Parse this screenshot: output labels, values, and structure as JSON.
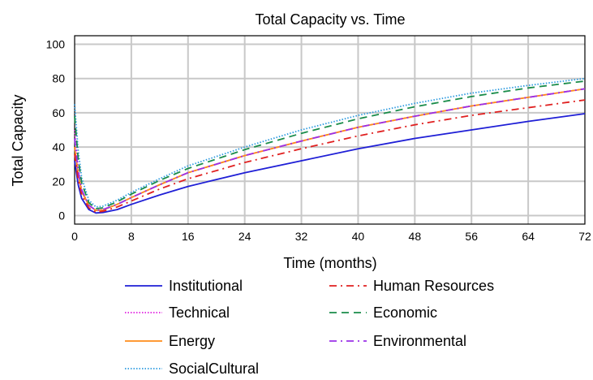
{
  "chart_data": {
    "type": "line",
    "title": "Total Capacity vs. Time",
    "xlabel": "Time (months)",
    "ylabel": "Total Capacity",
    "xlim": [
      0,
      72
    ],
    "ylim": [
      -5,
      105
    ],
    "xticks": [
      0,
      8,
      16,
      24,
      32,
      40,
      48,
      56,
      64,
      72
    ],
    "yticks": [
      0,
      20,
      40,
      60,
      80,
      100
    ],
    "grid": true,
    "legend_position": "bottom",
    "series": [
      {
        "name": "Institutional",
        "color": "#1f1fd6",
        "dash": "solid",
        "x": [
          0,
          0.5,
          1,
          2,
          3,
          4,
          6,
          8,
          12,
          16,
          24,
          32,
          40,
          48,
          56,
          64,
          72
        ],
        "y": [
          32,
          18,
          10,
          3.5,
          1.5,
          1.8,
          3.5,
          6.5,
          12,
          17,
          25,
          32,
          39,
          45,
          50,
          55,
          59.5
        ]
      },
      {
        "name": "Technical",
        "color": "#e11ee1",
        "dash": "dotted",
        "x": [
          0,
          0.5,
          1,
          2,
          3,
          4,
          6,
          8,
          12,
          16,
          24,
          32,
          40,
          48,
          56,
          64,
          72
        ],
        "y": [
          50,
          28,
          15,
          6,
          3,
          3.5,
          6.5,
          10.5,
          18,
          25,
          35,
          43.5,
          51.5,
          58,
          64,
          69,
          74
        ]
      },
      {
        "name": "Energy",
        "color": "#ff8c1a",
        "dash": "solid",
        "x": [
          0,
          0.5,
          1,
          2,
          3,
          4,
          6,
          8,
          12,
          16,
          24,
          32,
          40,
          48,
          56,
          64,
          72
        ],
        "y": [
          40,
          24,
          14,
          6,
          3,
          3.2,
          6.5,
          10.5,
          18,
          25,
          35,
          43.5,
          51.5,
          58,
          64,
          69,
          74
        ]
      },
      {
        "name": "SocialCultural",
        "color": "#2d9be0",
        "dash": "dotted",
        "x": [
          0,
          0.5,
          1,
          2,
          3,
          4,
          6,
          8,
          12,
          16,
          24,
          32,
          40,
          48,
          56,
          64,
          72
        ],
        "y": [
          65,
          38,
          22,
          9,
          5,
          5.5,
          9,
          13.5,
          21.5,
          29,
          40,
          50,
          58.5,
          65.5,
          71.5,
          76,
          80
        ]
      },
      {
        "name": "Human Resources",
        "color": "#e02020",
        "dash": "dashdot",
        "x": [
          0,
          0.5,
          1,
          2,
          3,
          4,
          6,
          8,
          12,
          16,
          24,
          32,
          40,
          48,
          56,
          64,
          72
        ],
        "y": [
          36,
          21,
          12,
          4.5,
          2,
          2.5,
          5,
          8.5,
          15.5,
          21.5,
          31,
          39,
          46.5,
          53,
          58.5,
          63,
          67.5
        ]
      },
      {
        "name": "Economic",
        "color": "#1a8c4a",
        "dash": "dashed",
        "x": [
          0,
          0.5,
          1,
          2,
          3,
          4,
          6,
          8,
          12,
          16,
          24,
          32,
          40,
          48,
          56,
          64,
          72
        ],
        "y": [
          58,
          33,
          19,
          7.5,
          4,
          4.5,
          8,
          12.5,
          20.5,
          27.5,
          38.5,
          48,
          56.5,
          63.5,
          69.5,
          74.5,
          78.5
        ]
      },
      {
        "name": "Environmental",
        "color": "#9b30e8",
        "dash": "dashdot",
        "x": [
          0,
          0.5,
          1,
          2,
          3,
          4,
          6,
          8,
          12,
          16,
          24,
          32,
          40,
          48,
          56,
          64,
          72
        ],
        "y": [
          45,
          26,
          15,
          6,
          3,
          3.5,
          6.5,
          10.5,
          18,
          25,
          35,
          43.5,
          51.5,
          58,
          64,
          69,
          74
        ]
      }
    ]
  }
}
